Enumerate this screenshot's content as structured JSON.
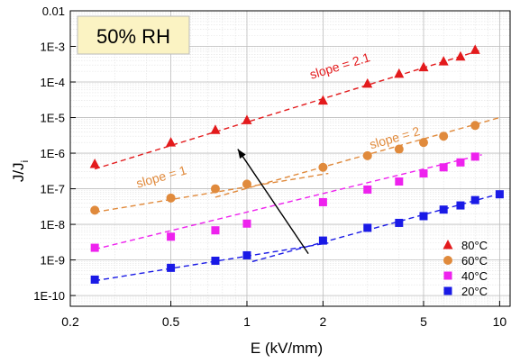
{
  "chart_data": {
    "type": "scatter",
    "xlabel": "E (kV/mm)",
    "ylabel": "J/J",
    "ylabel_subscript": "i",
    "xscale": "log",
    "yscale": "log",
    "xlim": [
      0.2,
      11
    ],
    "ylim": [
      5e-11,
      0.01
    ],
    "grid": true,
    "legend_position": "bottom-right",
    "x_ticks": [
      {
        "value": 0.2,
        "label": "0.2"
      },
      {
        "value": 0.5,
        "label": "0.5"
      },
      {
        "value": 1,
        "label": "1"
      },
      {
        "value": 2,
        "label": "2"
      },
      {
        "value": 5,
        "label": "5"
      },
      {
        "value": 10,
        "label": "10"
      }
    ],
    "y_ticks": [
      {
        "value": 1e-10,
        "label": "1E-10"
      },
      {
        "value": 1e-09,
        "label": "1E-9"
      },
      {
        "value": 1e-08,
        "label": "1E-8"
      },
      {
        "value": 1e-07,
        "label": "1E-7"
      },
      {
        "value": 1e-06,
        "label": "1E-6"
      },
      {
        "value": 1e-05,
        "label": "1E-5"
      },
      {
        "value": 0.0001,
        "label": "1E-4"
      },
      {
        "value": 0.001,
        "label": "1E-3"
      },
      {
        "value": 0.01,
        "label": "0.01"
      }
    ],
    "title_box": "50% RH",
    "series": [
      {
        "name": "80°C",
        "color": "#e31a1c",
        "marker": "triangle",
        "x": [
          0.25,
          0.5,
          0.75,
          1,
          2,
          3,
          4,
          5,
          6,
          7,
          8
        ],
        "y": [
          5e-07,
          2e-06,
          4.5e-06,
          8.5e-06,
          3e-05,
          9e-05,
          0.00017,
          0.00026,
          0.00038,
          0.00052,
          0.0008
        ],
        "fits": [
          {
            "x": [
              0.25,
              8.5
            ],
            "y": [
              3.6e-07,
              0.0008
            ]
          }
        ]
      },
      {
        "name": "60°C",
        "color": "#e08a3c",
        "marker": "circle",
        "x": [
          0.25,
          0.5,
          0.75,
          1,
          2,
          3,
          4,
          5,
          6,
          8
        ],
        "y": [
          2.5e-08,
          5.5e-08,
          1e-07,
          1.35e-07,
          4e-07,
          8.5e-07,
          1.3e-06,
          2e-06,
          3e-06,
          6e-06
        ],
        "fits": [
          {
            "x": [
              0.25,
              2.1
            ],
            "y": [
              2.2e-08,
              2.7e-07
            ]
          },
          {
            "x": [
              0.75,
              10
            ],
            "y": [
              5.8e-08,
              1e-05
            ]
          }
        ]
      },
      {
        "name": "40°C",
        "color": "#ee22ee",
        "marker": "square",
        "x": [
          0.25,
          0.5,
          0.75,
          1,
          2,
          3,
          4,
          5,
          6,
          7,
          8
        ],
        "y": [
          2.2e-09,
          4.5e-09,
          6.8e-09,
          1.05e-08,
          4.2e-08,
          9.5e-08,
          1.6e-07,
          2.7e-07,
          4e-07,
          5.5e-07,
          8e-07
        ],
        "fits": [
          {
            "x": [
              0.25,
              8.5
            ],
            "y": [
              2e-09,
              9e-07
            ]
          }
        ]
      },
      {
        "name": "20°C",
        "color": "#1a1ae6",
        "marker": "square",
        "x": [
          0.25,
          0.5,
          0.75,
          1,
          2,
          3,
          4,
          5,
          6,
          7,
          8,
          10
        ],
        "y": [
          2.8e-10,
          6e-10,
          9.5e-10,
          1.35e-09,
          3.5e-09,
          8e-09,
          1.1e-08,
          1.7e-08,
          2.6e-08,
          3.4e-08,
          4.8e-08,
          7e-08
        ],
        "fits": [
          {
            "x": [
              0.25,
              2.1
            ],
            "y": [
              2.6e-10,
              3e-09
            ]
          },
          {
            "x": [
              1.05,
              10
            ],
            "y": [
              9e-10,
              7.2e-08
            ]
          }
        ]
      }
    ],
    "annotations": [
      {
        "text": "slope = 2.1",
        "x": 1.8,
        "y": 0.00012,
        "color": "#e31a1c"
      },
      {
        "text": "slope = 2",
        "x": 3.1,
        "y": 1.3e-06,
        "color": "#e08a3c"
      },
      {
        "text": "slope = 1",
        "x": 0.37,
        "y": 1.05e-07,
        "color": "#e08a3c"
      }
    ],
    "arrow": {
      "from": {
        "x": 1.75,
        "y": 1.5e-09
      },
      "to": {
        "x": 0.92,
        "y": 1.3e-06
      }
    }
  }
}
